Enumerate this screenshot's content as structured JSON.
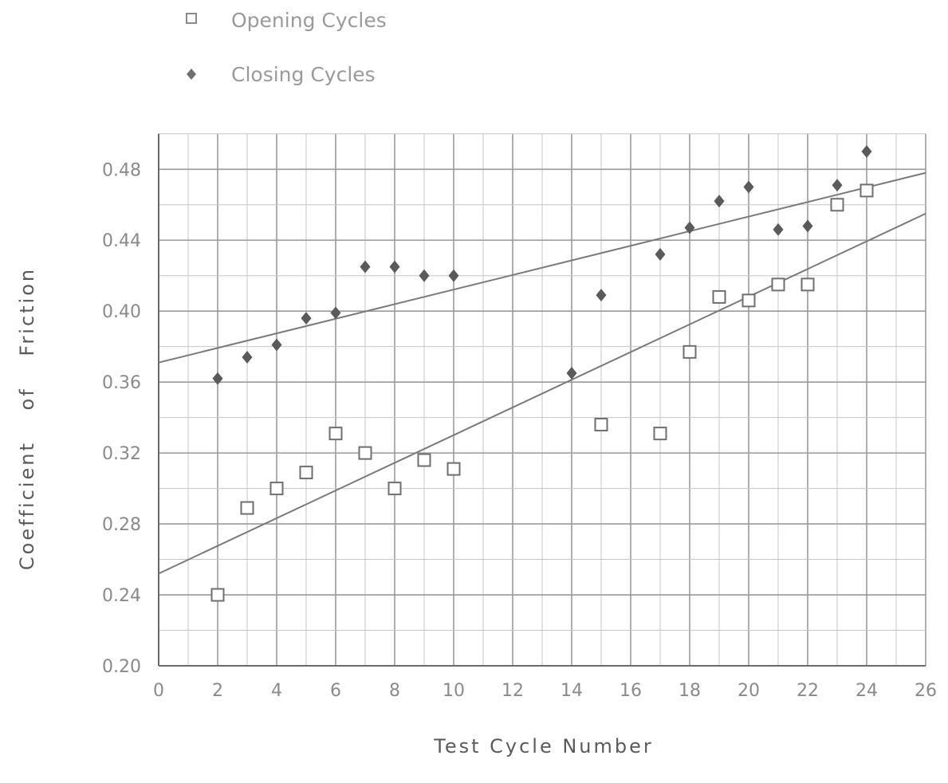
{
  "chart_data": {
    "type": "scatter",
    "xlabel": "Test Cycle Number",
    "ylabel_words": [
      "Coefficient",
      "of",
      "Friction"
    ],
    "xlim": [
      0,
      26
    ],
    "ylim": [
      0.2,
      0.5
    ],
    "x_ticks": [
      0,
      2,
      4,
      6,
      8,
      10,
      12,
      14,
      16,
      18,
      20,
      22,
      24,
      26
    ],
    "y_ticks": [
      0.2,
      0.24,
      0.28,
      0.32,
      0.36,
      0.4,
      0.44,
      0.48
    ],
    "y_tick_labels": [
      "0.20",
      "0.24",
      "0.28",
      "0.32",
      "0.36",
      "0.40",
      "0.44",
      "0.48"
    ],
    "grid": true,
    "legend_position": "top-left",
    "series": [
      {
        "name": "Opening Cycles",
        "marker": "open-square",
        "color": "#6f6f6f",
        "points": [
          [
            2,
            0.24
          ],
          [
            3,
            0.289
          ],
          [
            4,
            0.3
          ],
          [
            5,
            0.309
          ],
          [
            6,
            0.331
          ],
          [
            7,
            0.32
          ],
          [
            8,
            0.3
          ],
          [
            9,
            0.316
          ],
          [
            10,
            0.311
          ],
          [
            15,
            0.336
          ],
          [
            17,
            0.331
          ],
          [
            18,
            0.377
          ],
          [
            19,
            0.408
          ],
          [
            20,
            0.406
          ],
          [
            21,
            0.415
          ],
          [
            22,
            0.415
          ],
          [
            23,
            0.46
          ],
          [
            24,
            0.468
          ]
        ],
        "trend": {
          "from": [
            0,
            0.252
          ],
          "to": [
            26,
            0.455
          ]
        }
      },
      {
        "name": "Closing Cycles",
        "marker": "filled-diamond",
        "color": "#5a5a5a",
        "points": [
          [
            2,
            0.362
          ],
          [
            3,
            0.374
          ],
          [
            4,
            0.381
          ],
          [
            5,
            0.396
          ],
          [
            6,
            0.399
          ],
          [
            7,
            0.425
          ],
          [
            8,
            0.425
          ],
          [
            9,
            0.42
          ],
          [
            10,
            0.42
          ],
          [
            14,
            0.365
          ],
          [
            15,
            0.409
          ],
          [
            17,
            0.432
          ],
          [
            18,
            0.447
          ],
          [
            19,
            0.462
          ],
          [
            20,
            0.47
          ],
          [
            21,
            0.446
          ],
          [
            22,
            0.448
          ],
          [
            23,
            0.471
          ],
          [
            24,
            0.49
          ]
        ],
        "trend": {
          "from": [
            0,
            0.371
          ],
          "to": [
            26,
            0.478
          ]
        }
      }
    ]
  }
}
